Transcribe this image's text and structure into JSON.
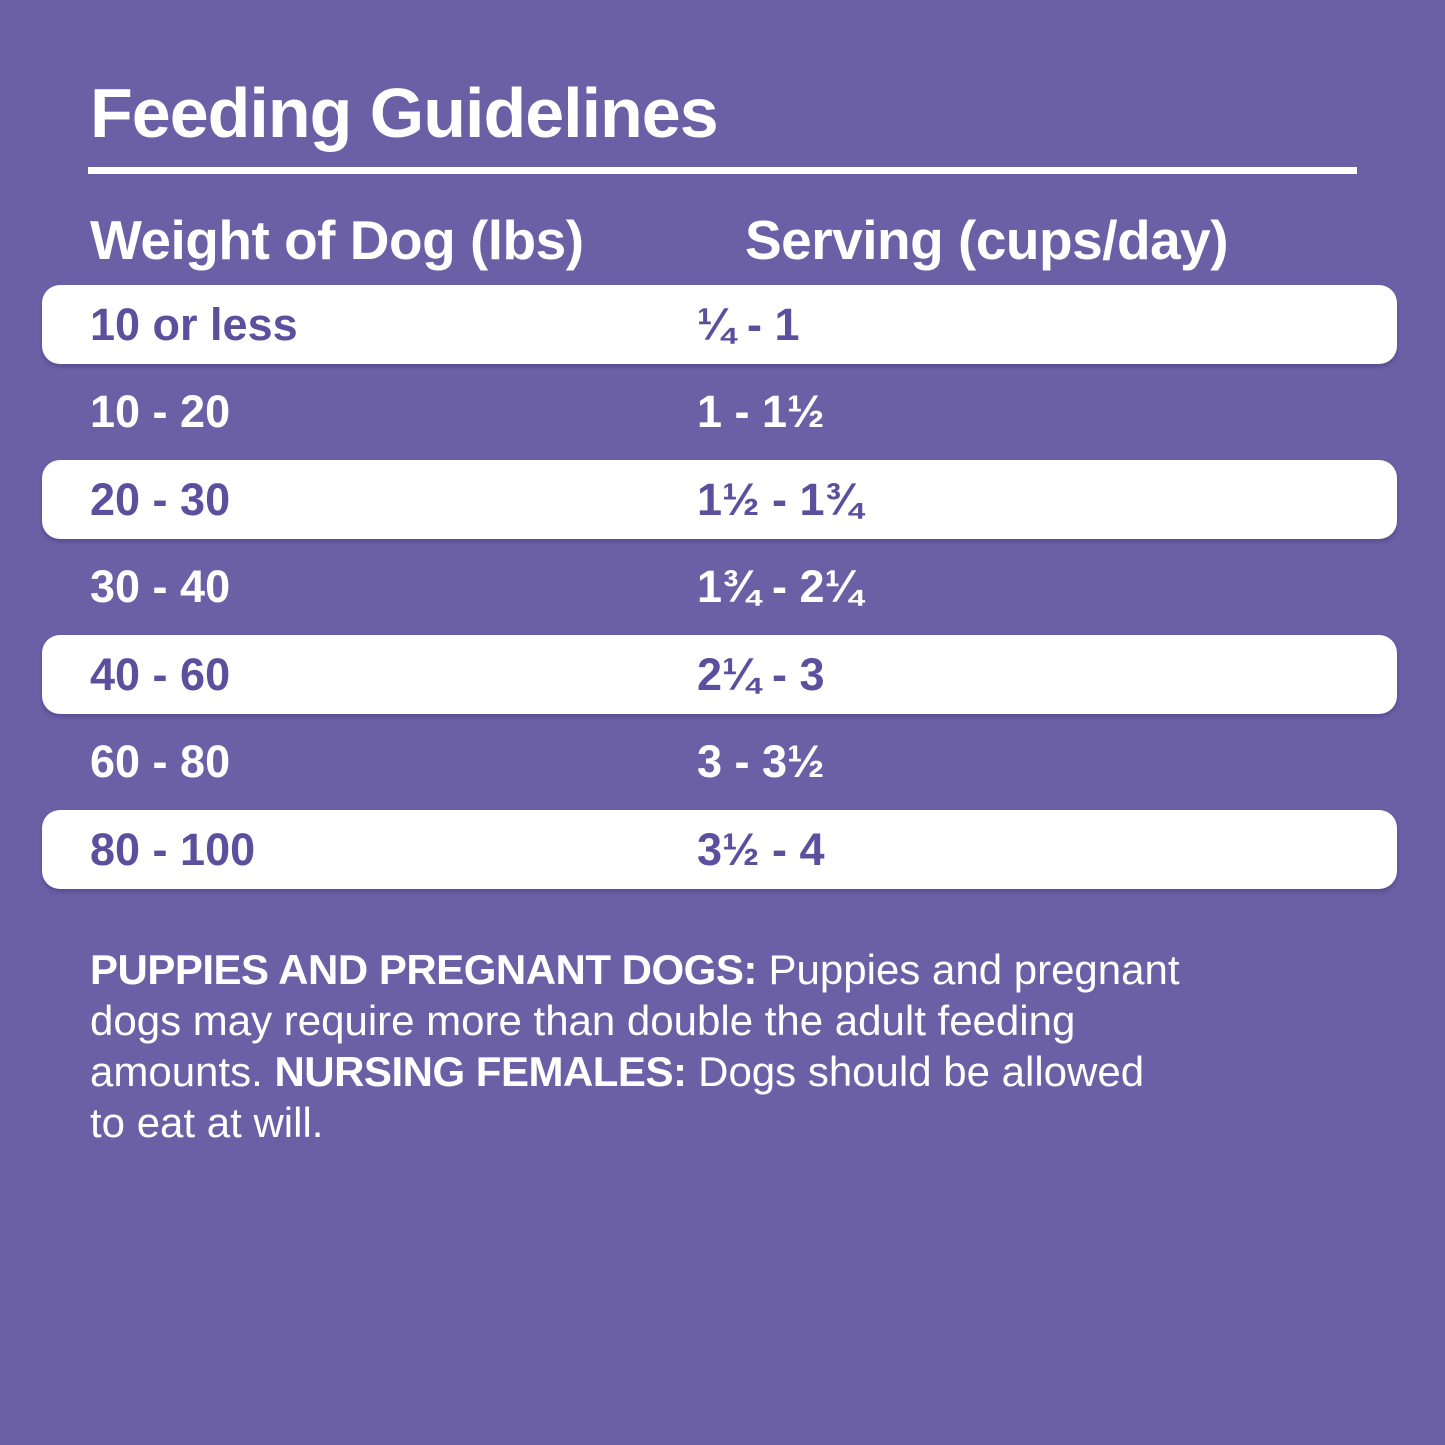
{
  "page": {
    "background_color": "#6B60A6",
    "row_text_color": "#5C4F9E",
    "text_color": "#FFFFFF"
  },
  "title": "Feeding Guidelines",
  "table": {
    "headers": {
      "weight": "Weight of Dog (lbs)",
      "serving": "Serving (cups/day)"
    },
    "rows": [
      {
        "weight": "10 or less",
        "serving": "¼ - 1"
      },
      {
        "weight": "10 - 20",
        "serving": "1 - 1½"
      },
      {
        "weight": "20 - 30",
        "serving": "1½ - 1¾"
      },
      {
        "weight": "30 - 40",
        "serving": "1¾ - 2¼"
      },
      {
        "weight": "40 - 60",
        "serving": "2¼ - 3"
      },
      {
        "weight": "60 - 80",
        "serving": "3 - 3½"
      },
      {
        "weight": "80 - 100",
        "serving": "3½ - 4"
      }
    ]
  },
  "footer": {
    "lines": [
      [
        {
          "t": "PUPPIES AND PREGNANT DOGS:"
        },
        {
          "t": " Puppies and pregnant"
        }
      ],
      [
        {
          "t": "dogs may require more than double the adult feeding"
        }
      ],
      [
        {
          "t": "amounts. "
        },
        {
          "t": "NURSING FEMALES:"
        },
        {
          "t": " Dogs should be allowed"
        }
      ],
      [
        {
          "t": "to eat at will."
        }
      ]
    ]
  }
}
